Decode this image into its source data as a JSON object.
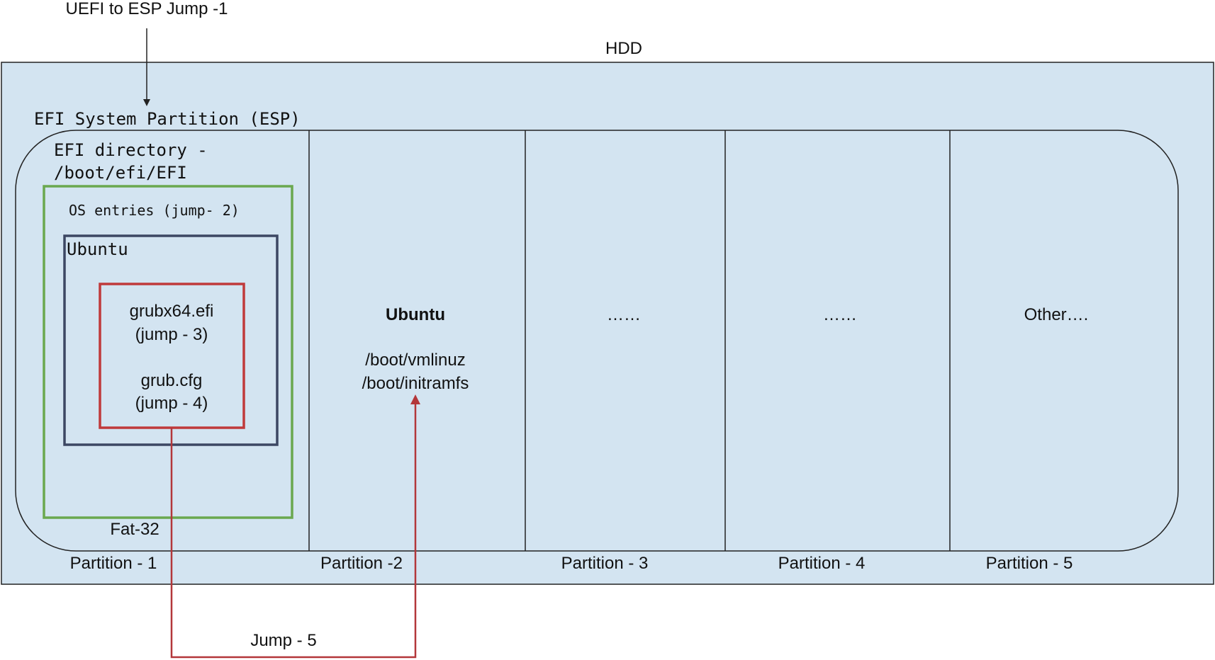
{
  "colors": {
    "disk_fill": "#d3e4f1",
    "line": "#222222",
    "efi_dir_border": "#6aa84f",
    "ubuntu_box_border": "#3c4763",
    "grub_box_border": "#c0393b",
    "jump_arrow": "#b3373a",
    "text": "#111111"
  },
  "labels": {
    "uefi_jump": "UEFI to ESP Jump -1",
    "hdd": "HDD",
    "esp": "EFI System Partition (ESP)",
    "efi_dir_line1": "EFI directory -",
    "efi_dir_line2": "/boot/efi/EFI",
    "os_entries": "OS entries (jump- 2)",
    "ubuntu_entry": "Ubuntu",
    "grub_efi_line1": "grubx64.efi",
    "grub_efi_line2": "(jump - 3)",
    "grub_cfg_line1": "grub.cfg",
    "grub_cfg_line2": "(jump - 4)",
    "fat32": "Fat-32",
    "jump5": "Jump - 5"
  },
  "partitions": [
    {
      "label": "Partition - 1"
    },
    {
      "label": "Partition -2",
      "title": "Ubuntu",
      "lines": [
        "/boot/vmlinuz",
        "/boot/initramfs"
      ]
    },
    {
      "label": "Partition - 3",
      "title": "……"
    },
    {
      "label": "Partition - 4",
      "title": "……"
    },
    {
      "label": "Partition - 5",
      "title": "Other…."
    }
  ]
}
